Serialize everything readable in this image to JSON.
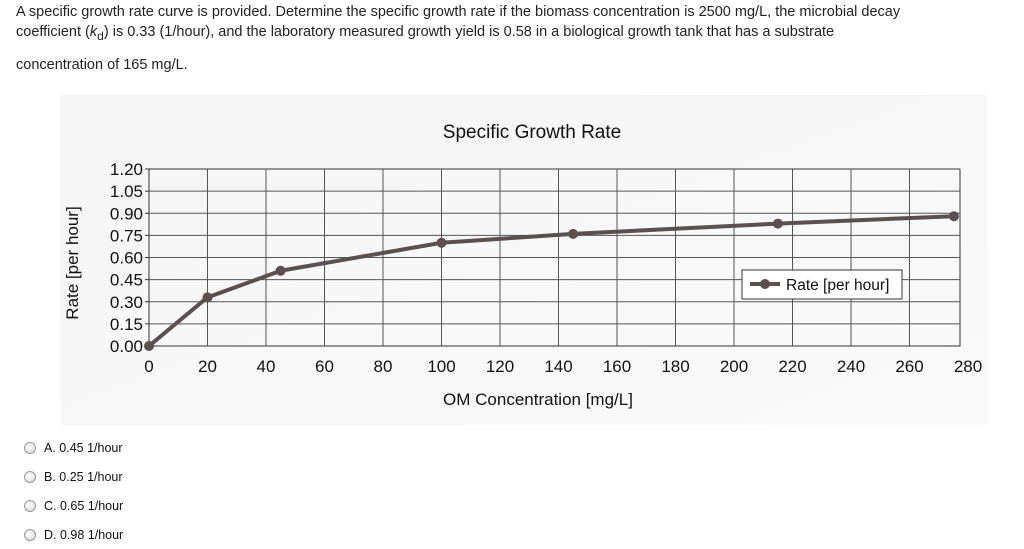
{
  "question": {
    "line1": "A specific growth rate curve is provided. Determine the specific growth rate if the biomass concentration is 2500 mg/L, the microbial decay",
    "line2_pre": "coefficient (",
    "line2_k": "k",
    "line2_sub": "d",
    "line2_post": ") is 0.33 (1/hour), and the laboratory measured growth yield is 0.58 in a biological growth tank that has a substrate",
    "line3": "concentration of 165 mg/L."
  },
  "chart_data": {
    "type": "line",
    "title": "Specific Growth Rate",
    "xlabel": "OM Concentration  [mg/L]",
    "ylabel": "Rate  [per hour]",
    "xlim": [
      0,
      280
    ],
    "ylim": [
      0,
      1.2
    ],
    "x_ticks": [
      "0",
      "20",
      "40",
      "60",
      "80",
      "100",
      "120",
      "140",
      "160",
      "180",
      "200",
      "220",
      "240",
      "260",
      "280"
    ],
    "y_ticks": [
      "0.00",
      "0.15",
      "0.30",
      "0.45",
      "0.60",
      "0.75",
      "0.90",
      "1.05",
      "1.20"
    ],
    "grid": true,
    "legend_position": "right",
    "series": [
      {
        "name": "Rate  [per hour]",
        "color": "#5b4f4f",
        "x": [
          0,
          20,
          45,
          100,
          145,
          215,
          285
        ],
        "y": [
          0.0,
          0.33,
          0.51,
          0.7,
          0.76,
          0.83,
          0.88
        ]
      }
    ]
  },
  "choices": [
    {
      "label": "A. 0.45 1/hour"
    },
    {
      "label": "B. 0.25 1/hour"
    },
    {
      "label": "C. 0.65 1/hour"
    },
    {
      "label": "D. 0.98 1/hour"
    }
  ]
}
